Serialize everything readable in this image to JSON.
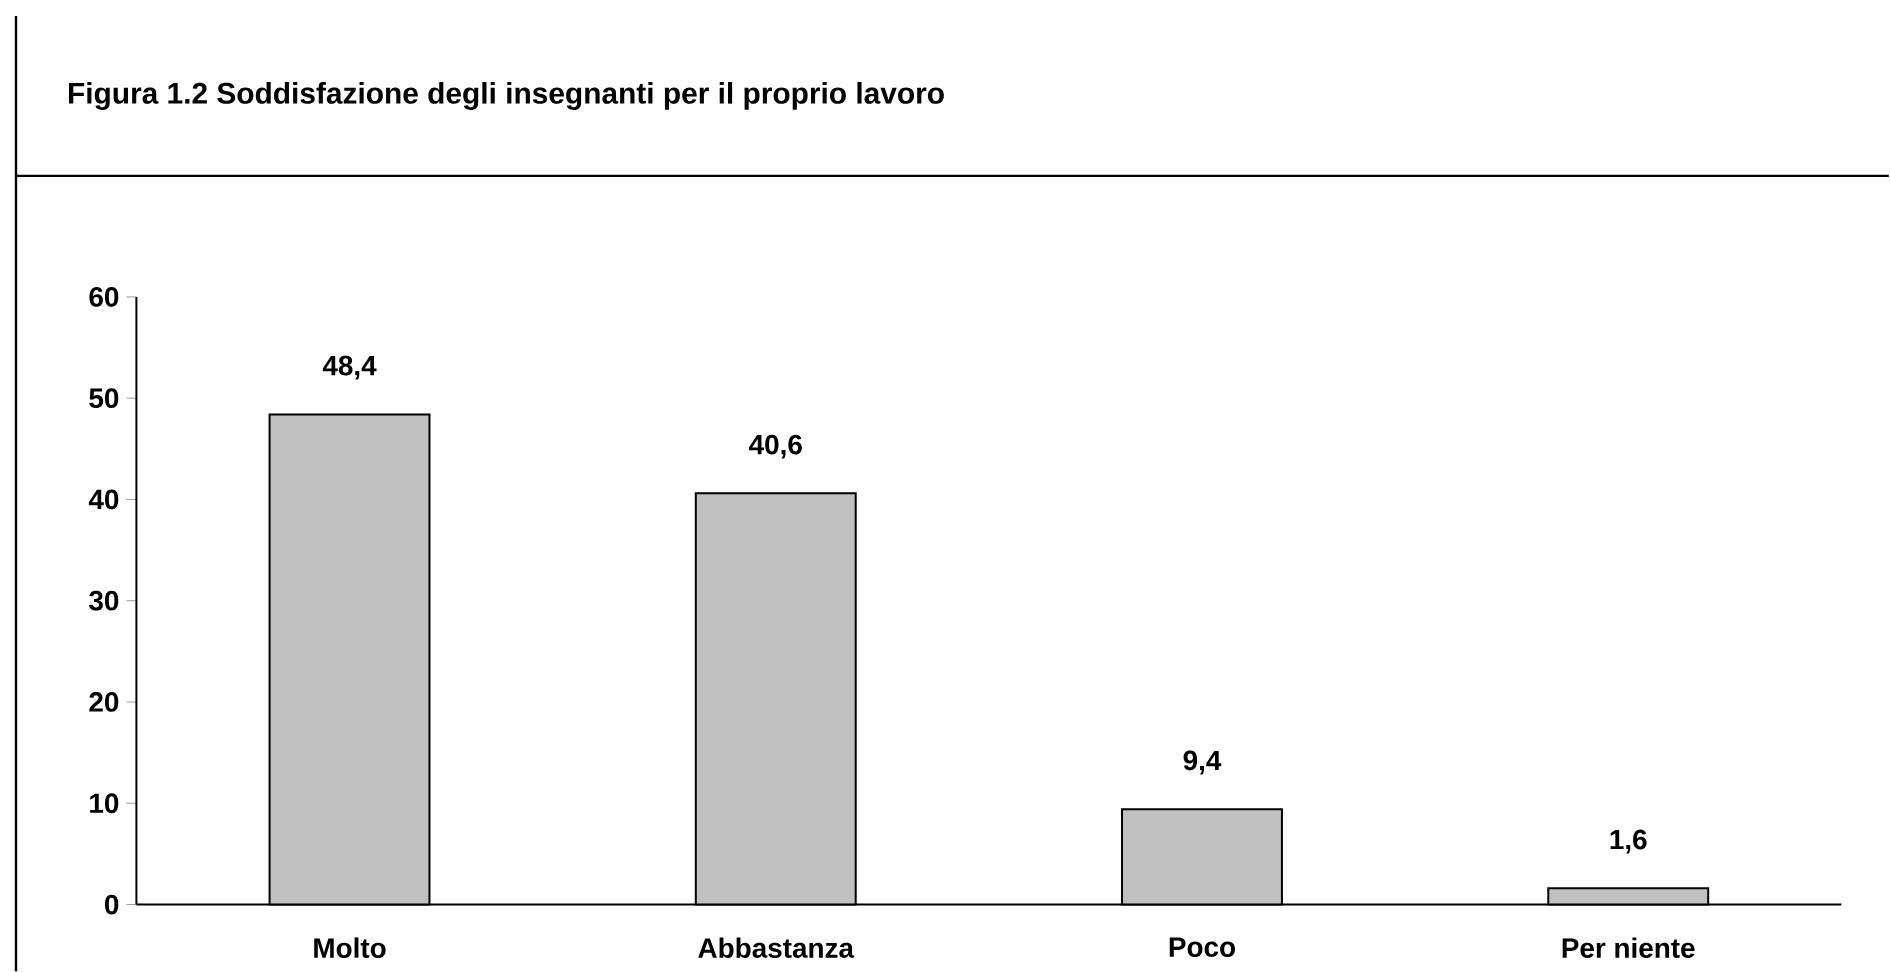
{
  "chart_data": {
    "type": "bar",
    "title": "Figura 1.2 Soddisfazione degli insegnanti per il proprio lavoro",
    "categories": [
      "Molto",
      "Abbastanza",
      "Poco",
      "Per niente"
    ],
    "values": [
      48.4,
      40.6,
      9.4,
      1.6
    ],
    "value_labels": [
      "48,4",
      "40,6",
      "9,4",
      "1,6"
    ],
    "color": "#c0c0c0",
    "ylim": [
      0,
      60
    ],
    "yticks": [
      0,
      10,
      20,
      30,
      40,
      50,
      60
    ],
    "grid": false
  }
}
